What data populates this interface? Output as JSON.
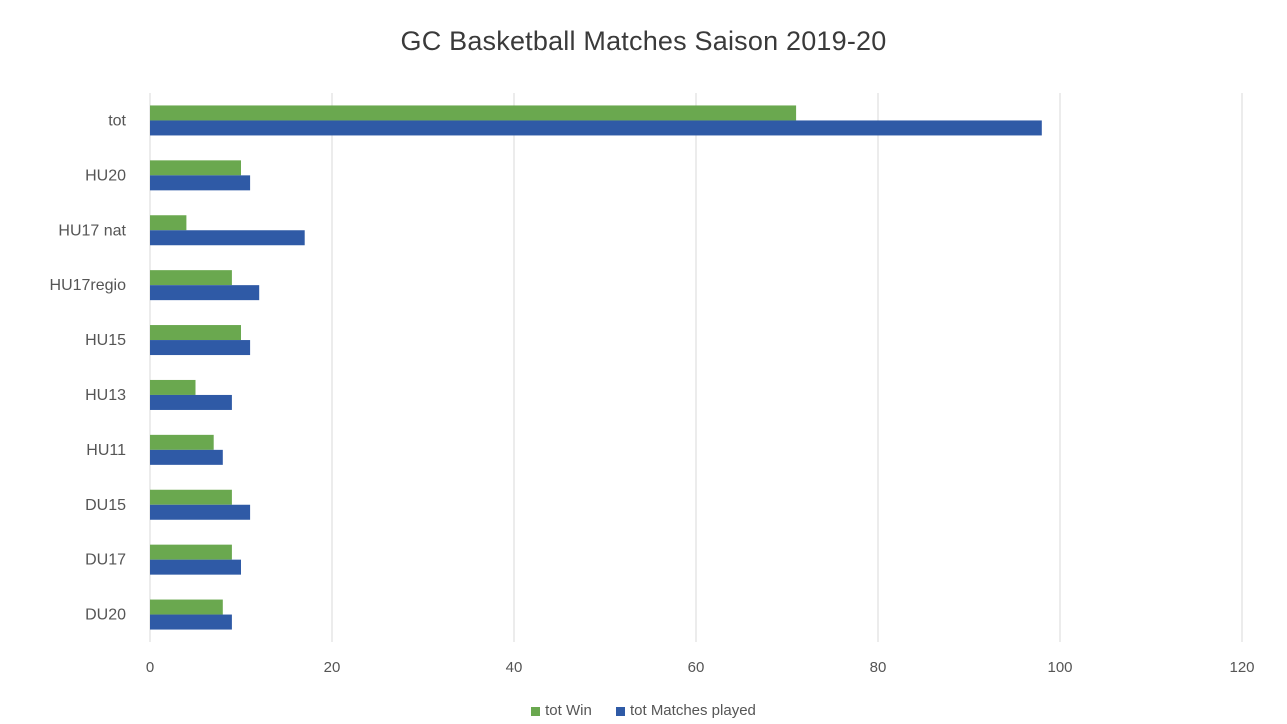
{
  "chart_data": {
    "type": "bar",
    "orientation": "horizontal",
    "title": "GC Basketball Matches Saison  2019-20",
    "categories": [
      "tot",
      "HU20",
      "HU17 nat",
      "HU17regio",
      "HU15",
      "HU13",
      "HU11",
      "DU15",
      "DU17",
      "DU20"
    ],
    "series": [
      {
        "name": "tot Win",
        "color": "#6aa84f",
        "values": [
          71,
          10,
          4,
          9,
          10,
          5,
          7,
          9,
          9,
          8
        ]
      },
      {
        "name": "tot Matches played",
        "color": "#2f5aa6",
        "values": [
          98,
          11,
          17,
          12,
          11,
          9,
          8,
          11,
          10,
          9
        ]
      }
    ],
    "xlim": [
      0,
      120
    ],
    "xticks": [
      "0",
      "20",
      "40",
      "60",
      "80",
      "100",
      "120"
    ],
    "grid": true,
    "legend_position": "bottom"
  }
}
